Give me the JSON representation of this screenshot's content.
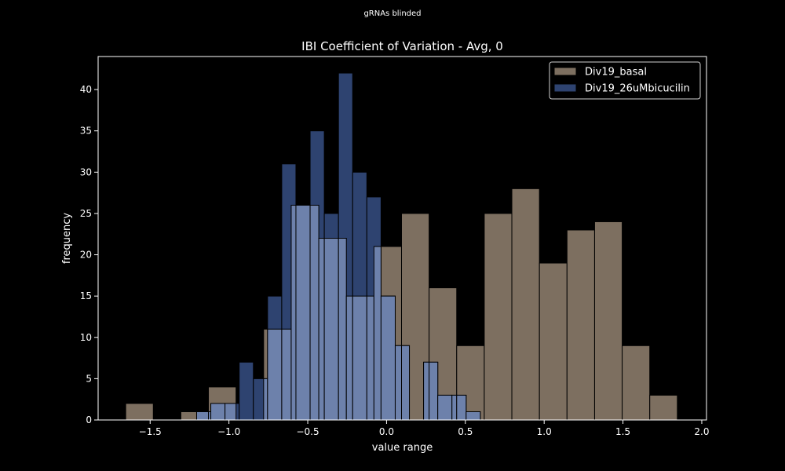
{
  "figure": {
    "suptitle": "gRNAs blinded"
  },
  "chart_data": {
    "type": "bar",
    "title": "IBI Coefficient of Variation - Avg, 0",
    "xlabel": "value range",
    "ylabel": "frequency",
    "xlim": [
      -1.83,
      2.03
    ],
    "ylim": [
      0,
      44
    ],
    "xticks": [
      -1.5,
      -1.0,
      -0.5,
      0.0,
      0.5,
      1.0,
      1.5,
      2.0
    ],
    "xtick_labels": [
      "−1.5",
      "−1.0",
      "−0.5",
      "0.0",
      "0.5",
      "1.0",
      "1.5",
      "2.0"
    ],
    "yticks": [
      0,
      5,
      10,
      15,
      20,
      25,
      30,
      35,
      40
    ],
    "grid": false,
    "legend_position": "top-right",
    "series": [
      {
        "name": "Div19_basal",
        "color": "#7d6f60",
        "bins": [
          [
            -1.655,
            -1.48,
            2
          ],
          [
            -1.305,
            -1.13,
            1
          ],
          [
            -1.13,
            -0.955,
            4
          ],
          [
            -0.78,
            -0.605,
            11
          ],
          [
            -0.605,
            -0.43,
            26
          ],
          [
            -0.43,
            -0.255,
            22
          ],
          [
            -0.255,
            -0.08,
            15
          ],
          [
            -0.08,
            0.095,
            21
          ],
          [
            0.095,
            0.27,
            25
          ],
          [
            0.27,
            0.445,
            16
          ],
          [
            0.445,
            0.62,
            9
          ],
          [
            0.62,
            0.795,
            25
          ],
          [
            0.795,
            0.97,
            28
          ],
          [
            0.97,
            1.145,
            19
          ],
          [
            1.145,
            1.32,
            23
          ],
          [
            1.32,
            1.495,
            24
          ],
          [
            1.495,
            1.67,
            9
          ],
          [
            1.67,
            1.845,
            3
          ]
        ]
      },
      {
        "name": "Div19_26uMbicucilin",
        "color": "#2e4370",
        "bins": [
          [
            -1.205,
            -1.115,
            1
          ],
          [
            -1.115,
            -1.025,
            2
          ],
          [
            -1.025,
            -0.935,
            2
          ],
          [
            -0.935,
            -0.845,
            7
          ],
          [
            -0.845,
            -0.755,
            5
          ],
          [
            -0.755,
            -0.665,
            15
          ],
          [
            -0.665,
            -0.575,
            31
          ],
          [
            -0.575,
            -0.485,
            26
          ],
          [
            -0.485,
            -0.395,
            35
          ],
          [
            -0.395,
            -0.305,
            25
          ],
          [
            -0.305,
            -0.215,
            42
          ],
          [
            -0.215,
            -0.125,
            30
          ],
          [
            -0.125,
            -0.035,
            27
          ],
          [
            -0.035,
            0.055,
            15
          ],
          [
            0.055,
            0.145,
            9
          ],
          [
            0.235,
            0.325,
            7
          ],
          [
            0.325,
            0.415,
            3
          ],
          [
            0.415,
            0.505,
            3
          ],
          [
            0.505,
            0.595,
            1
          ]
        ]
      }
    ],
    "overlap_color": "#6d81ab"
  }
}
